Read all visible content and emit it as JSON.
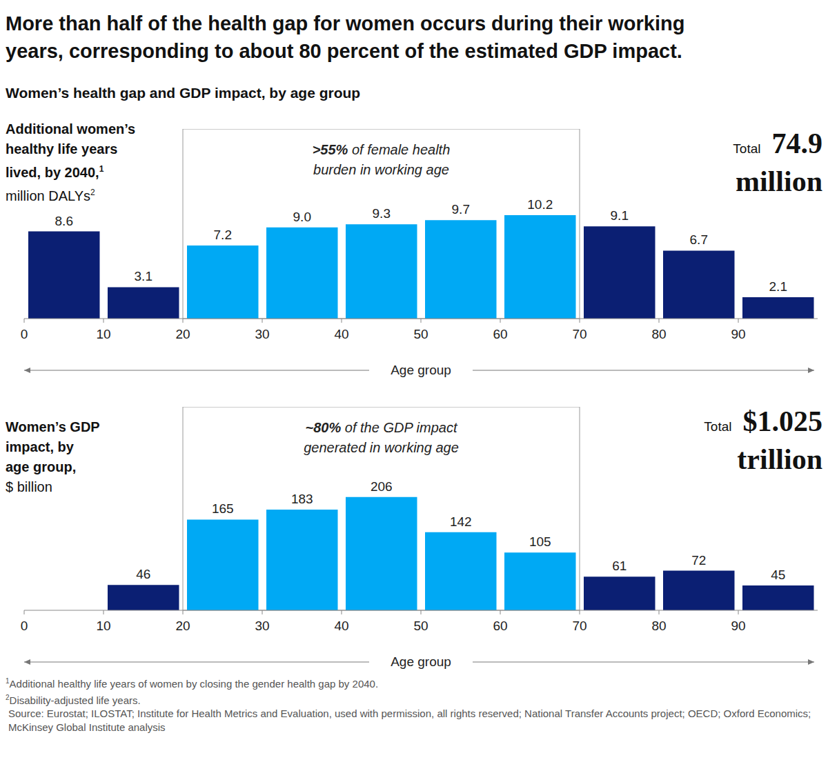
{
  "title": [
    "More than half of the health gap for women occurs during their working",
    "years, corresponding to about 80 percent of the estimated GDP impact."
  ],
  "subtitle": "Women’s health gap and GDP impact, by age group",
  "footnotes": [
    {
      "mark": "1",
      "text": "Additional healthy life years of women by closing the gender health gap by 2040."
    },
    {
      "mark": "2",
      "text": "Disability-adjusted life years."
    }
  ],
  "source": "Source: Eurostat; ILOSTAT; Institute for Health Metrics and Evaluation, used with permission, all rights reserved; National Transfer Accounts project; OECD; Oxford Economics; McKinsey Global Institute analysis",
  "chart_data": [
    {
      "type": "histogram",
      "ylabel_lines": [
        "Additional women’s",
        "healthy life years",
        "lived, by 2040,"
      ],
      "ylabel_sup": "1",
      "ylabel_unit": "million DALYs",
      "ylabel_unit_sup": "2",
      "xlabel": "Age group",
      "bins": [
        0,
        10,
        20,
        30,
        40,
        50,
        60,
        70,
        80,
        90,
        100
      ],
      "values": [
        8.6,
        3.1,
        7.2,
        9.0,
        9.3,
        9.7,
        10.2,
        9.1,
        6.7,
        2.1
      ],
      "value_labels": [
        "8.6",
        "3.1",
        "7.2",
        "9.0",
        "9.3",
        "9.7",
        "10.2",
        "9.1",
        "6.7",
        "2.1"
      ],
      "colors": [
        "#0b1f73",
        "#0b1f73",
        "#00a9f4",
        "#00a9f4",
        "#00a9f4",
        "#00a9f4",
        "#00a9f4",
        "#0b1f73",
        "#0b1f73",
        "#0b1f73"
      ],
      "xlim": [
        0,
        100
      ],
      "xticks": [
        0,
        10,
        20,
        30,
        40,
        50,
        60,
        70,
        80,
        90
      ],
      "ylim": [
        0,
        18.7
      ],
      "tick_labels": "x",
      "data_labels": true,
      "highlight": [
        20,
        70
      ],
      "annotation_bold": ">55%",
      "annotation_lines": [
        "of female health",
        "burden in working age"
      ],
      "total_label": "Total",
      "total_lines": [
        "74.9",
        "million"
      ]
    },
    {
      "type": "histogram",
      "ylabel_lines": [
        "Women’s GDP",
        "impact, by",
        "age group,"
      ],
      "ylabel_unit": "$ billion",
      "xlabel": "Age group",
      "bins": [
        0,
        10,
        20,
        30,
        40,
        50,
        60,
        70,
        80,
        90,
        100
      ],
      "values": [
        0,
        46,
        165,
        183,
        206,
        142,
        105,
        61,
        72,
        45
      ],
      "colors": [
        "#0b1f73",
        "#0b1f73",
        "#00a9f4",
        "#00a9f4",
        "#00a9f4",
        "#00a9f4",
        "#00a9f4",
        "#0b1f73",
        "#0b1f73",
        "#0b1f73"
      ],
      "xlim": [
        0,
        100
      ],
      "xticks": [
        0,
        10,
        20,
        30,
        40,
        50,
        60,
        70,
        80,
        90
      ],
      "ylim": [
        0,
        370
      ],
      "tick_labels": "x",
      "data_labels": true,
      "highlight": [
        20,
        70
      ],
      "annotation_bold": "~80%",
      "annotation_lines": [
        "of the GDP impact",
        "generated in working age"
      ],
      "total_label": "Total",
      "total_lines": [
        "$1.025",
        "trillion"
      ]
    }
  ]
}
